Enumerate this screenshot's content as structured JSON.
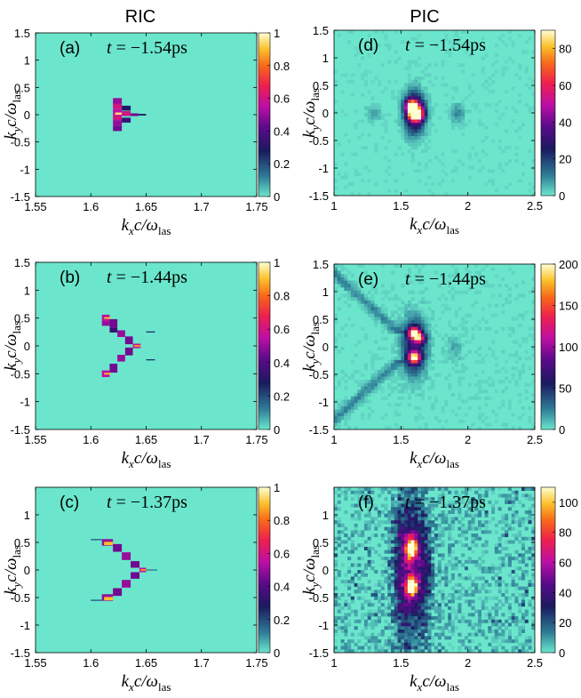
{
  "column_titles": {
    "left": "RIC",
    "right": "PIC"
  },
  "colors": {
    "background_map": "#6be6cc",
    "frame": "#000000"
  },
  "chart_data": [
    {
      "id": "a",
      "type": "heatmap",
      "column": "RIC",
      "label": "(a)",
      "time": "−1.54",
      "time_unit": "ps",
      "xlabel": "k_x c/ω_las",
      "ylabel": "k_y c/ω_las",
      "xlim": [
        1.55,
        1.75
      ],
      "ylim": [
        -1.5,
        1.5
      ],
      "xticks": [
        "1.55",
        "1.6",
        "1.65",
        "1.7",
        "1.75"
      ],
      "yticks": [
        "1.5",
        "1",
        "0.5",
        "0",
        "-0.5",
        "-1",
        "-1.5"
      ],
      "colorbar": {
        "min": 0,
        "max": 1,
        "ticks": [
          "1",
          "0.8",
          "0.6",
          "0.4",
          "0.2",
          "0"
        ]
      },
      "features": [
        {
          "x0": 1.62,
          "x1": 1.628,
          "y": 0.25,
          "h": 0.11,
          "v": 0.5
        },
        {
          "x0": 1.62,
          "x1": 1.628,
          "y": 0.15,
          "h": 0.1,
          "v": 0.6
        },
        {
          "x0": 1.62,
          "x1": 1.628,
          "y": 0.05,
          "h": 0.1,
          "v": 0.55
        },
        {
          "x0": 1.62,
          "x1": 1.628,
          "y": -0.05,
          "h": 0.1,
          "v": 0.6
        },
        {
          "x0": 1.62,
          "x1": 1.628,
          "y": -0.15,
          "h": 0.1,
          "v": 0.5
        },
        {
          "x0": 1.62,
          "x1": 1.628,
          "y": -0.25,
          "h": 0.1,
          "v": 0.45
        },
        {
          "x0": 1.622,
          "x1": 1.628,
          "y": 0.02,
          "h": 0.04,
          "v": 0.95
        },
        {
          "x0": 1.628,
          "x1": 1.636,
          "y": 0.12,
          "h": 0.09,
          "v": 0.3
        },
        {
          "x0": 1.628,
          "x1": 1.636,
          "y": 0.02,
          "h": 0.09,
          "v": 0.6
        },
        {
          "x0": 1.628,
          "x1": 1.636,
          "y": -0.1,
          "h": 0.09,
          "v": 0.35
        },
        {
          "x0": 1.636,
          "x1": 1.643,
          "y": 0.0,
          "h": 0.05,
          "v": 0.45
        },
        {
          "x0": 1.643,
          "x1": 1.65,
          "y": 0.0,
          "h": 0.03,
          "v": 0.3
        }
      ]
    },
    {
      "id": "d",
      "type": "heatmap",
      "column": "PIC",
      "label": "(d)",
      "time": "−1.54",
      "time_unit": "ps",
      "xlabel": "k_x c/ω_las",
      "ylabel": "k_y c/ω_las",
      "xlim": [
        1,
        2.5
      ],
      "ylim": [
        -1.5,
        1.5
      ],
      "xticks": [
        "1",
        "1.5",
        "2",
        "2.5"
      ],
      "yticks": [
        "1.5",
        "1",
        "0.5",
        "0",
        "-0.5",
        "-1",
        "-1.5"
      ],
      "colorbar": {
        "min": 0,
        "max": 90,
        "ticks": [
          "80",
          "60",
          "40",
          "20",
          "0"
        ]
      },
      "features": [
        {
          "x": 1.6,
          "y": 0.0,
          "sx": 0.05,
          "sy": 0.25,
          "v": 45
        },
        {
          "x": 1.58,
          "y": 0.12,
          "sx": 0.03,
          "sy": 0.08,
          "v": 85
        },
        {
          "x": 1.6,
          "y": -0.05,
          "sx": 0.03,
          "sy": 0.06,
          "v": 80
        },
        {
          "x": 1.64,
          "y": 0.0,
          "sx": 0.03,
          "sy": 0.1,
          "v": 45
        },
        {
          "x": 1.92,
          "y": 0.0,
          "sx": 0.04,
          "sy": 0.12,
          "v": 10
        },
        {
          "x": 1.3,
          "y": 0.0,
          "sx": 0.04,
          "sy": 0.1,
          "v": 7
        }
      ]
    },
    {
      "id": "b",
      "type": "heatmap",
      "column": "RIC",
      "label": "(b)",
      "time": "−1.44",
      "time_unit": "ps",
      "xlabel": "k_x c/ω_las",
      "ylabel": "k_y c/ω_las",
      "xlim": [
        1.55,
        1.75
      ],
      "ylim": [
        -1.5,
        1.5
      ],
      "xticks": [
        "1.55",
        "1.6",
        "1.65",
        "1.7",
        "1.75"
      ],
      "yticks": [
        "1.5",
        "1",
        "0.5",
        "0",
        "-0.5",
        "-1",
        "-1.5"
      ],
      "colorbar": {
        "min": 0,
        "max": 1,
        "ticks": [
          "1",
          "0.8",
          "0.6",
          "0.4",
          "0.2",
          "0"
        ]
      },
      "features": [
        {
          "x0": 1.61,
          "x1": 1.617,
          "y": 0.5,
          "h": 0.12,
          "v": 0.55
        },
        {
          "x0": 1.61,
          "x1": 1.617,
          "y": 0.4,
          "h": 0.08,
          "v": 0.5
        },
        {
          "x0": 1.617,
          "x1": 1.624,
          "y": 0.4,
          "h": 0.16,
          "v": 0.45
        },
        {
          "x0": 1.617,
          "x1": 1.624,
          "y": 0.28,
          "h": 0.08,
          "v": 0.35
        },
        {
          "x0": 1.624,
          "x1": 1.631,
          "y": 0.22,
          "h": 0.12,
          "v": 0.5
        },
        {
          "x0": 1.631,
          "x1": 1.638,
          "y": 0.1,
          "h": 0.14,
          "v": 0.45
        },
        {
          "x0": 1.638,
          "x1": 1.645,
          "y": 0.0,
          "h": 0.08,
          "v": 0.55
        },
        {
          "x0": 1.631,
          "x1": 1.638,
          "y": -0.1,
          "h": 0.14,
          "v": 0.45
        },
        {
          "x0": 1.624,
          "x1": 1.631,
          "y": -0.22,
          "h": 0.12,
          "v": 0.5
        },
        {
          "x0": 1.617,
          "x1": 1.624,
          "y": -0.4,
          "h": 0.16,
          "v": 0.45
        },
        {
          "x0": 1.61,
          "x1": 1.617,
          "y": -0.5,
          "h": 0.12,
          "v": 0.55
        },
        {
          "x0": 1.612,
          "x1": 1.618,
          "y": 0.5,
          "h": 0.03,
          "v": 0.9
        },
        {
          "x0": 1.612,
          "x1": 1.618,
          "y": -0.5,
          "h": 0.03,
          "v": 0.9
        },
        {
          "x0": 1.639,
          "x1": 1.645,
          "y": 0.0,
          "h": 0.03,
          "v": 0.85
        },
        {
          "x0": 1.65,
          "x1": 1.658,
          "y": 0.25,
          "h": 0.02,
          "v": 0.25
        },
        {
          "x0": 1.65,
          "x1": 1.658,
          "y": -0.25,
          "h": 0.02,
          "v": 0.25
        }
      ]
    },
    {
      "id": "e",
      "type": "heatmap",
      "column": "PIC",
      "label": "(e)",
      "time": "−1.44",
      "time_unit": "ps",
      "xlabel": "k_x c/ω_las",
      "ylabel": "k_y c/ω_las",
      "xlim": [
        1,
        2.5
      ],
      "ylim": [
        -1.5,
        1.5
      ],
      "xticks": [
        "1",
        "1.5",
        "2",
        "2.5"
      ],
      "yticks": [
        "1.5",
        "1",
        "0.5",
        "0",
        "-0.5",
        "-1",
        "-1.5"
      ],
      "colorbar": {
        "min": 0,
        "max": 200,
        "ticks": [
          "200",
          "150",
          "100",
          "50",
          "0"
        ]
      },
      "features": [
        {
          "x": 1.6,
          "y": 0.0,
          "sx": 0.06,
          "sy": 0.35,
          "v": 70
        },
        {
          "x": 1.6,
          "y": 0.25,
          "sx": 0.03,
          "sy": 0.07,
          "v": 190
        },
        {
          "x": 1.6,
          "y": -0.2,
          "sx": 0.03,
          "sy": 0.07,
          "v": 175
        },
        {
          "x": 1.64,
          "y": 0.15,
          "sx": 0.03,
          "sy": 0.06,
          "v": 110
        },
        {
          "x": 1.9,
          "y": 0.0,
          "sx": 0.04,
          "sy": 0.15,
          "v": 15
        }
      ]
    },
    {
      "id": "c",
      "type": "heatmap",
      "column": "RIC",
      "label": "(c)",
      "time": "−1.37",
      "time_unit": "ps",
      "xlabel": "k_x c/ω_las",
      "ylabel": "k_y c/ω_las",
      "xlim": [
        1.55,
        1.75
      ],
      "ylim": [
        -1.5,
        1.5
      ],
      "xticks": [
        "1.55",
        "1.6",
        "1.65",
        "1.7",
        "1.75"
      ],
      "yticks": [
        "1",
        "0.5",
        "0",
        "-0.5",
        "-1",
        "-1.5"
      ],
      "colorbar": {
        "min": 0,
        "max": 1,
        "ticks": [
          "1",
          "0.8",
          "0.6",
          "0.4",
          "0.2",
          "0"
        ]
      },
      "features": [
        {
          "x0": 1.6,
          "x1": 1.61,
          "y": 0.55,
          "h": 0.02,
          "v": 0.2
        },
        {
          "x0": 1.61,
          "x1": 1.62,
          "y": 0.5,
          "h": 0.12,
          "v": 0.5
        },
        {
          "x0": 1.612,
          "x1": 1.62,
          "y": 0.48,
          "h": 0.06,
          "v": 0.9
        },
        {
          "x0": 1.62,
          "x1": 1.628,
          "y": 0.4,
          "h": 0.14,
          "v": 0.45
        },
        {
          "x0": 1.628,
          "x1": 1.636,
          "y": 0.25,
          "h": 0.14,
          "v": 0.5
        },
        {
          "x0": 1.636,
          "x1": 1.644,
          "y": 0.1,
          "h": 0.12,
          "v": 0.45
        },
        {
          "x0": 1.644,
          "x1": 1.65,
          "y": 0.0,
          "h": 0.08,
          "v": 0.55
        },
        {
          "x0": 1.645,
          "x1": 1.65,
          "y": 0.0,
          "h": 0.03,
          "v": 0.85
        },
        {
          "x0": 1.636,
          "x1": 1.644,
          "y": -0.1,
          "h": 0.12,
          "v": 0.45
        },
        {
          "x0": 1.628,
          "x1": 1.636,
          "y": -0.25,
          "h": 0.14,
          "v": 0.5
        },
        {
          "x0": 1.62,
          "x1": 1.628,
          "y": -0.4,
          "h": 0.14,
          "v": 0.45
        },
        {
          "x0": 1.61,
          "x1": 1.62,
          "y": -0.5,
          "h": 0.12,
          "v": 0.5
        },
        {
          "x0": 1.612,
          "x1": 1.62,
          "y": -0.52,
          "h": 0.06,
          "v": 0.9
        },
        {
          "x0": 1.6,
          "x1": 1.61,
          "y": -0.55,
          "h": 0.02,
          "v": 0.2
        },
        {
          "x0": 1.65,
          "x1": 1.66,
          "y": 0.0,
          "h": 0.015,
          "v": 0.2
        }
      ]
    },
    {
      "id": "f",
      "type": "heatmap",
      "column": "PIC",
      "label": "(f)",
      "time": "−1.37",
      "time_unit": "ps",
      "xlabel": "k_x c/ω_las",
      "ylabel": "k_y c/ω_las",
      "xlim": [
        1,
        2.5
      ],
      "ylim": [
        -1.5,
        1.5
      ],
      "xticks": [
        "1",
        "1.5",
        "2",
        "2.5"
      ],
      "yticks": [
        "1",
        "0.5",
        "0",
        "-0.5",
        "-1",
        "-1.5"
      ],
      "colorbar": {
        "min": 0,
        "max": 110,
        "ticks": [
          "100",
          "80",
          "60",
          "40",
          "20",
          "0"
        ]
      },
      "features": [
        {
          "x": 1.58,
          "y": 0.0,
          "sx": 0.07,
          "sy": 0.9,
          "v": 40
        },
        {
          "x": 1.58,
          "y": 0.4,
          "sx": 0.03,
          "sy": 0.15,
          "v": 95
        },
        {
          "x": 1.58,
          "y": -0.3,
          "sx": 0.03,
          "sy": 0.12,
          "v": 105
        },
        {
          "x": 1.5,
          "y": 0.0,
          "sx": 0.05,
          "sy": 1.0,
          "v": 20
        },
        {
          "x": 1.68,
          "y": 0.0,
          "sx": 0.04,
          "sy": 0.8,
          "v": 20
        }
      ]
    }
  ]
}
